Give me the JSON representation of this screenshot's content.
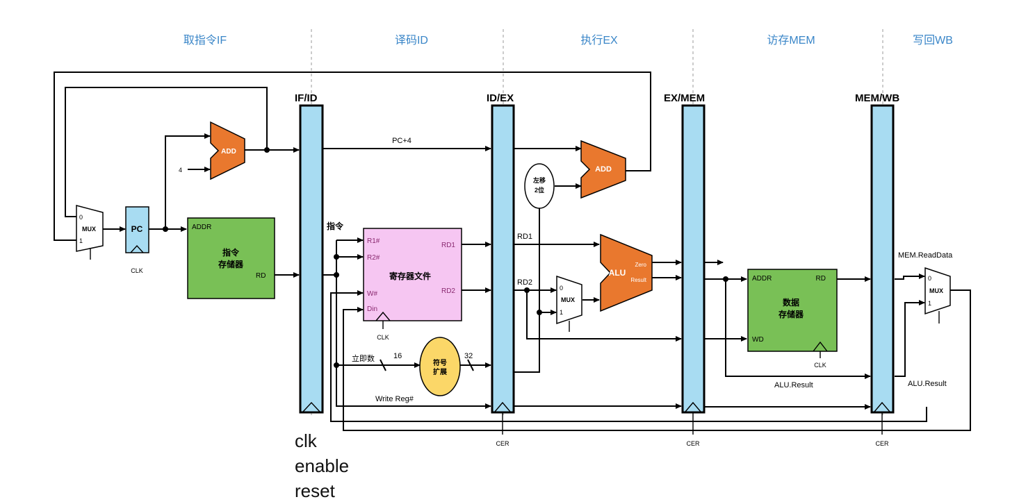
{
  "stages": [
    "取指令IF",
    "译码ID",
    "执行EX",
    "访存MEM",
    "写回WB"
  ],
  "pipeline_registers": [
    "IF/ID",
    "ID/EX",
    "EX/MEM",
    "MEM/WB"
  ],
  "blocks": {
    "pc": "PC",
    "add": "ADD",
    "add2": "ADD",
    "alu": "ALU",
    "mux": "MUX",
    "instr_mem": {
      "line1": "指令",
      "line2": "存储器",
      "addr": "ADDR",
      "rd": "RD"
    },
    "reg_file": {
      "title": "寄存器文件",
      "r1": "R1#",
      "r2": "R2#",
      "w": "W#",
      "din": "Din",
      "rd1": "RD1",
      "rd2": "RD2"
    },
    "data_mem": {
      "line1": "数据",
      "line2": "存储器",
      "addr": "ADDR",
      "rd": "RD",
      "wd": "WD"
    },
    "sign_ext": {
      "line1": "符号",
      "line2": "扩展"
    },
    "shift": {
      "line1": "左移",
      "line2": "2位"
    },
    "alu_zero": "Zero",
    "alu_result": "Result"
  },
  "labels": {
    "pc4": "PC+4",
    "four": "4",
    "instr": "指令",
    "imm": "立即数",
    "w16": "16",
    "w32": "32",
    "write_reg": "Write Reg#",
    "clk": "CLK",
    "cer": "CER",
    "rd1": "RD1",
    "rd2": "RD2",
    "mem_readdata": "MEM.ReadData",
    "alu_result": "ALU.Result",
    "mux0": "0",
    "mux1": "1"
  },
  "notes": [
    "clk",
    "enable",
    "reset"
  ]
}
